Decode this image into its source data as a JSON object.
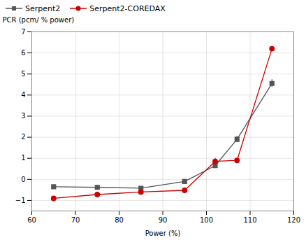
{
  "chart_data": {
    "type": "line",
    "xlabel": "Power (%)",
    "ylabel": "PCR (pcm/ % power)",
    "x": [
      65,
      75,
      85,
      95,
      102,
      107,
      115
    ],
    "series": [
      {
        "name": "Serpent2",
        "color": "#555555",
        "marker": "square",
        "values": [
          -0.35,
          -0.38,
          -0.42,
          -0.1,
          0.65,
          1.9,
          4.55
        ],
        "yerr": [
          0.08,
          0.08,
          0.08,
          0.08,
          0.12,
          0.15,
          0.18
        ]
      },
      {
        "name": "Serpent2-COREDAX",
        "color": "#cc0000",
        "marker": "circle",
        "values": [
          -0.9,
          -0.72,
          -0.6,
          -0.52,
          0.85,
          0.9,
          6.2
        ],
        "yerr": [
          0.0,
          0.0,
          0.0,
          0.0,
          0.15,
          0.0,
          0.0
        ]
      }
    ],
    "xlim": [
      60,
      120
    ],
    "ylim": [
      -1.5,
      7
    ],
    "xticks": [
      60,
      70,
      80,
      90,
      100,
      110,
      120
    ],
    "yticks": [
      -1,
      0,
      1,
      2,
      3,
      4,
      5,
      6,
      7
    ],
    "grid": true,
    "legend": "upper left"
  }
}
